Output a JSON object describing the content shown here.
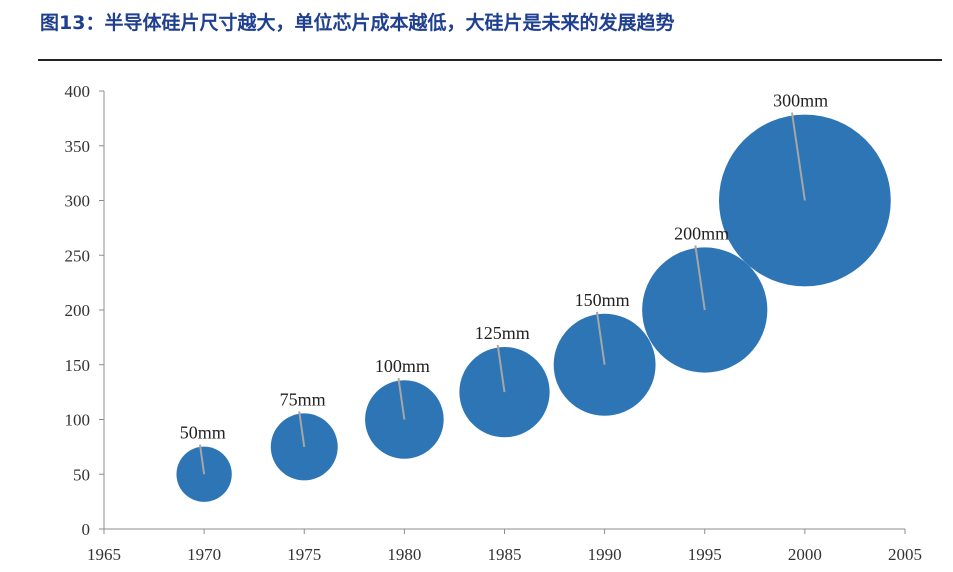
{
  "title": "图13：半导体硅片尺寸越大，单位芯片成本越低，大硅片是未来的发展趋势",
  "colors": {
    "bubble": "#2e75b6",
    "leader": "#a6a6a6",
    "axis": "#8c8c8c",
    "title": "#1f3f8f"
  },
  "chart_data": {
    "type": "bubble",
    "xlim": [
      1965,
      2005
    ],
    "ylim": [
      0,
      400
    ],
    "xticks": [
      "1965",
      "1970",
      "1975",
      "1980",
      "1985",
      "1990",
      "1995",
      "2000",
      "2005"
    ],
    "yticks": [
      "0",
      "50",
      "100",
      "150",
      "200",
      "250",
      "300",
      "350",
      "400"
    ],
    "grid": false,
    "series": [
      {
        "points": [
          {
            "x": 1970,
            "y": 50,
            "size": 50,
            "label": "50mm"
          },
          {
            "x": 1975,
            "y": 75,
            "size": 75,
            "label": "75mm"
          },
          {
            "x": 1980,
            "y": 100,
            "size": 100,
            "label": "100mm"
          },
          {
            "x": 1985,
            "y": 125,
            "size": 125,
            "label": "125mm"
          },
          {
            "x": 1990,
            "y": 150,
            "size": 150,
            "label": "150mm"
          },
          {
            "x": 1995,
            "y": 200,
            "size": 200,
            "label": "200mm"
          },
          {
            "x": 2000,
            "y": 300,
            "size": 300,
            "label": "300mm"
          }
        ]
      }
    ]
  }
}
